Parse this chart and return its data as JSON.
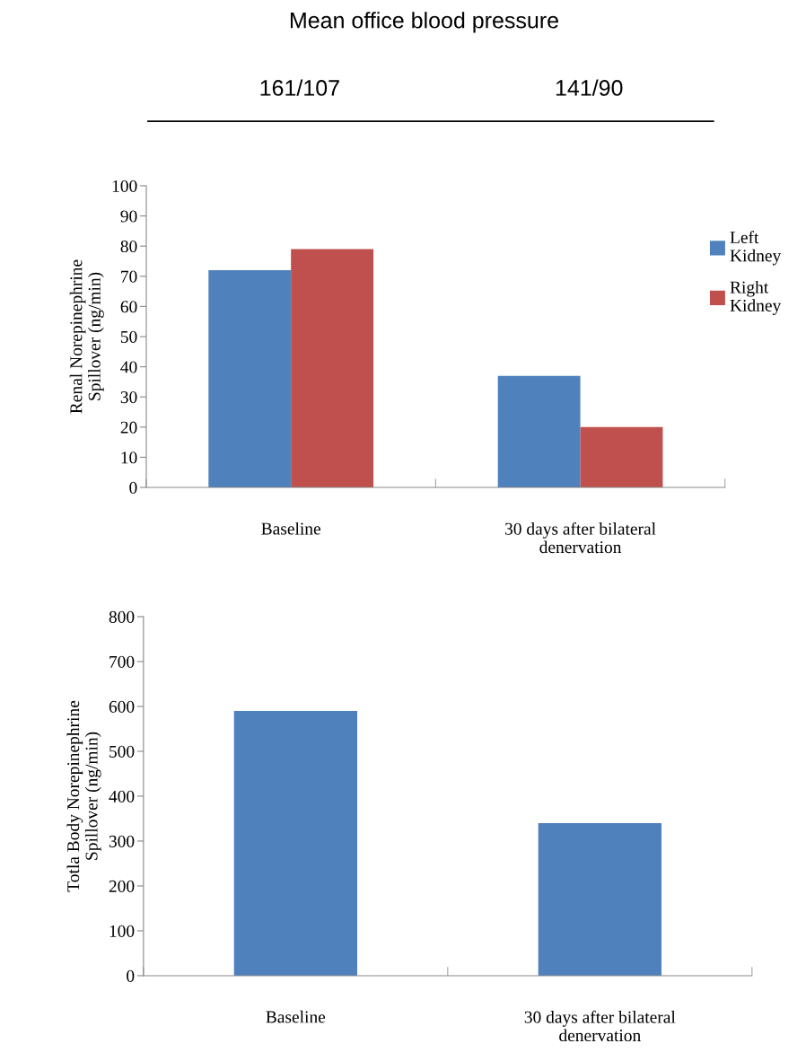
{
  "chart_data": [
    {
      "type": "bar",
      "title": "Mean office blood pressure",
      "annotations": [
        "161/107",
        "141/90"
      ],
      "ylabel": "Renal Norepinephrine Spillover (ng/min)",
      "categories": [
        "Baseline",
        "30 days after bilateral denervation"
      ],
      "series": [
        {
          "name": "Left Kidney",
          "color": "#4f81bd",
          "values": [
            72,
            37
          ]
        },
        {
          "name": "Right Kidney",
          "color": "#c0504d",
          "values": [
            79,
            20
          ]
        }
      ],
      "ylim": [
        0,
        100
      ],
      "yticks": [
        0,
        10,
        20,
        30,
        40,
        50,
        60,
        70,
        80,
        90,
        100
      ],
      "legend": "right",
      "grid": false
    },
    {
      "type": "bar",
      "ylabel": "Totla Body Norepinephrine Spillover (ng/min)",
      "categories": [
        "Baseline",
        "30 days after bilateral denervation"
      ],
      "series": [
        {
          "color": "#4f81bd",
          "values": [
            590,
            340
          ]
        }
      ],
      "ylim": [
        0,
        800
      ],
      "yticks": [
        0,
        100,
        200,
        300,
        400,
        500,
        600,
        700,
        800
      ],
      "grid": false
    }
  ]
}
